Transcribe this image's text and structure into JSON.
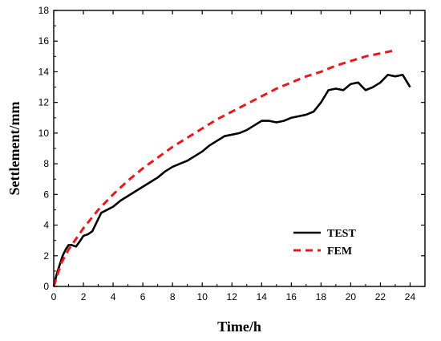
{
  "chart_data": {
    "type": "line",
    "title": "",
    "xlabel": "Time/h",
    "ylabel": "Settlement/mm",
    "xlim": [
      0,
      25
    ],
    "ylim": [
      0,
      18
    ],
    "xticks": [
      0,
      2,
      4,
      6,
      8,
      10,
      12,
      14,
      16,
      18,
      20,
      22,
      24
    ],
    "yticks": [
      0,
      2,
      4,
      6,
      8,
      10,
      12,
      14,
      16,
      18
    ],
    "grid": false,
    "legend_position": "lower-right",
    "series": [
      {
        "name": "TEST",
        "color": "#000000",
        "style": "solid",
        "x": [
          0,
          0.2,
          0.4,
          0.6,
          0.8,
          1.0,
          1.2,
          1.5,
          1.8,
          2.0,
          2.3,
          2.6,
          2.9,
          3.2,
          3.6,
          4.0,
          4.5,
          5.0,
          5.5,
          6.0,
          6.5,
          7.0,
          7.5,
          8.0,
          8.5,
          9.0,
          9.5,
          10.0,
          10.5,
          11.0,
          11.5,
          12.0,
          12.5,
          13.0,
          13.5,
          14.0,
          14.5,
          15.0,
          15.5,
          16.0,
          16.5,
          17.0,
          17.5,
          18.0,
          18.5,
          19.0,
          19.5,
          20.0,
          20.5,
          21.0,
          21.5,
          22.0,
          22.5,
          23.0,
          23.5,
          24.0
        ],
        "y": [
          0.0,
          0.8,
          1.4,
          2.0,
          2.4,
          2.7,
          2.7,
          2.6,
          3.0,
          3.3,
          3.4,
          3.6,
          4.2,
          4.8,
          5.0,
          5.2,
          5.6,
          5.9,
          6.2,
          6.5,
          6.8,
          7.1,
          7.5,
          7.8,
          8.0,
          8.2,
          8.5,
          8.8,
          9.2,
          9.5,
          9.8,
          9.9,
          10.0,
          10.2,
          10.5,
          10.8,
          10.8,
          10.7,
          10.8,
          11.0,
          11.1,
          11.2,
          11.4,
          12.0,
          12.8,
          12.9,
          12.8,
          13.2,
          13.3,
          12.8,
          13.0,
          13.3,
          13.8,
          13.7,
          13.8,
          13.0
        ]
      },
      {
        "name": "FEM",
        "color": "#e8191c",
        "style": "dashed",
        "x": [
          0,
          0.5,
          1,
          1.5,
          2,
          3,
          4,
          5,
          6,
          7,
          8,
          9,
          10,
          11,
          12,
          13,
          14,
          15,
          16,
          17,
          18,
          19,
          20,
          21,
          22,
          23
        ],
        "y": [
          0.0,
          1.5,
          2.4,
          3.1,
          3.8,
          5.0,
          6.0,
          6.9,
          7.7,
          8.4,
          9.1,
          9.7,
          10.3,
          10.9,
          11.4,
          11.9,
          12.4,
          12.9,
          13.3,
          13.7,
          14.0,
          14.4,
          14.7,
          15.0,
          15.2,
          15.4
        ]
      }
    ]
  }
}
